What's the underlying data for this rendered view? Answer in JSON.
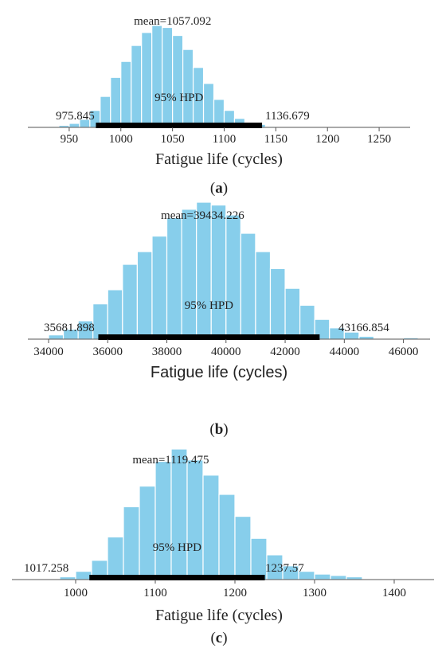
{
  "chart_data": [
    {
      "type": "histogram",
      "panel_label": "a",
      "xlabel": "Fatigue life (cycles)",
      "xticks": [
        950,
        1000,
        1050,
        1100,
        1150,
        1200,
        1250
      ],
      "xlim": [
        910,
        1280
      ],
      "bin_width": 10,
      "bin_start": 930,
      "counts": [
        1,
        2,
        4,
        8,
        17,
        31,
        50,
        66,
        82,
        95,
        102,
        100,
        92,
        78,
        60,
        44,
        28,
        17,
        9,
        5,
        3,
        1
      ],
      "mean_label": "mean=1057.092",
      "hpd_label": "95% HPD",
      "hpd_low": 975.845,
      "hpd_high": 1136.679,
      "hpd_low_label": "975.845",
      "hpd_high_label": "1136.679"
    },
    {
      "type": "histogram",
      "panel_label": "b",
      "xlabel": "Fatigue life (cycles)",
      "xticks": [
        34000,
        36000,
        38000,
        40000,
        42000,
        44000,
        46000
      ],
      "xlim": [
        33300,
        46900
      ],
      "bin_width": 500,
      "bin_start": 34000,
      "counts": [
        3,
        7,
        13,
        25,
        35,
        53,
        62,
        73,
        86,
        92,
        97,
        95,
        88,
        75,
        62,
        50,
        36,
        24,
        14,
        8,
        5,
        2,
        0,
        0,
        1
      ],
      "mean_label": "mean=39434.226",
      "hpd_label": "95% HPD",
      "hpd_low": 35681.898,
      "hpd_high": 43166.854,
      "hpd_low_label": "35681.898",
      "hpd_high_label": "43166.854"
    },
    {
      "type": "histogram",
      "panel_label": "c",
      "xlabel": "Fatigue life (cycles)",
      "xticks": [
        1000,
        1100,
        1200,
        1300,
        1400
      ],
      "xlim": [
        920,
        1450
      ],
      "bin_width": 20,
      "bin_start": 980,
      "counts": [
        2,
        6,
        14,
        31,
        53,
        68,
        86,
        95,
        87,
        76,
        62,
        46,
        30,
        18,
        10,
        6,
        4,
        3,
        2
      ],
      "mean_label": "mean=1119.475",
      "hpd_label": "95% HPD",
      "hpd_low": 1017.258,
      "hpd_high": 1237.57,
      "hpd_low_label": "1017.258",
      "hpd_high_label": "1237.57"
    }
  ]
}
